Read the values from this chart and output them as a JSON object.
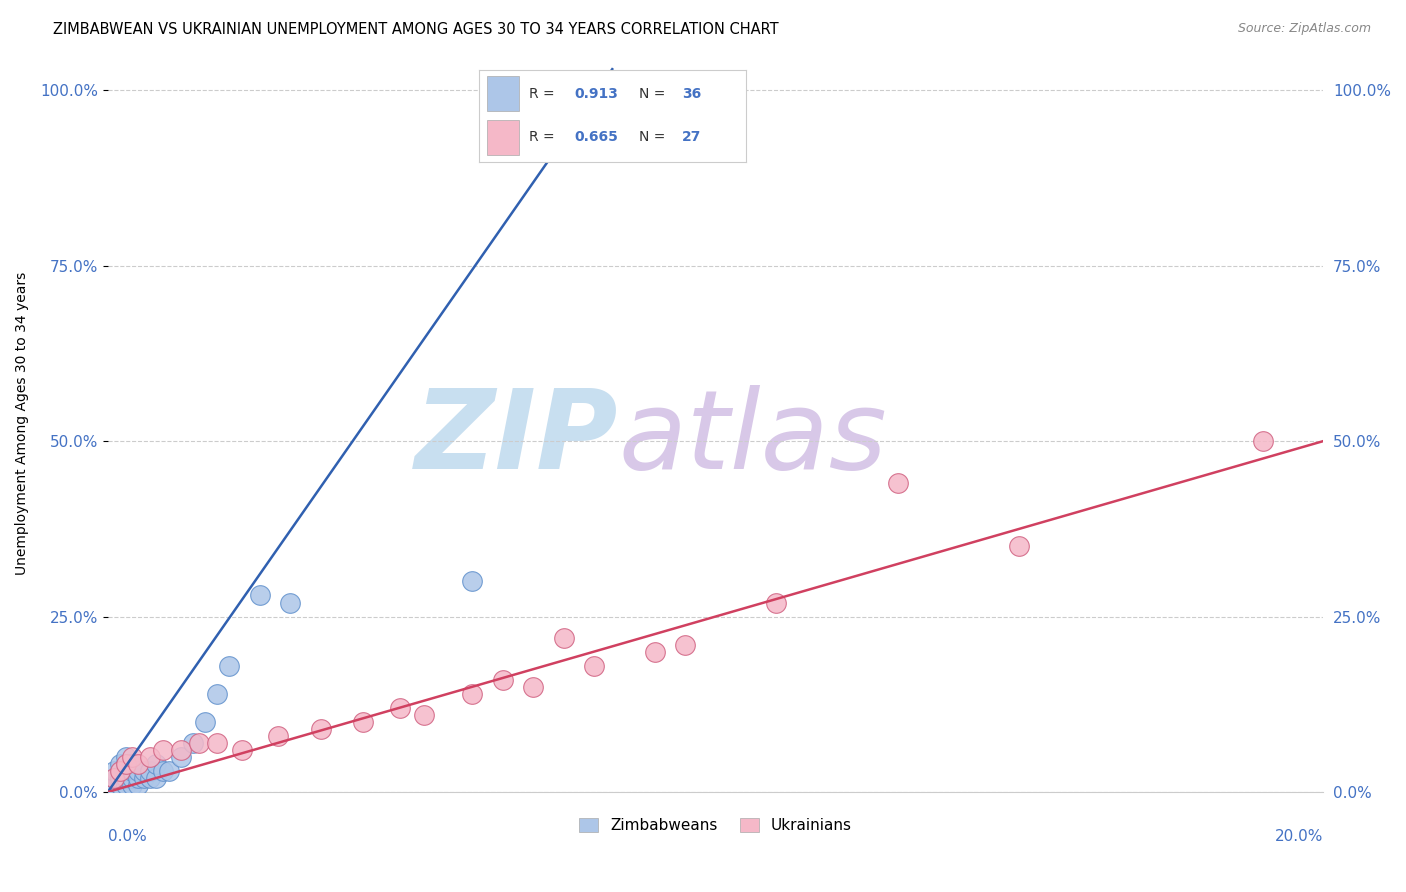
{
  "title": "ZIMBABWEAN VS UKRAINIAN UNEMPLOYMENT AMONG AGES 30 TO 34 YEARS CORRELATION CHART",
  "source": "Source: ZipAtlas.com",
  "ylabel": "Unemployment Among Ages 30 to 34 years",
  "x_label_bottom_left": "0.0%",
  "x_label_bottom_right": "20.0%",
  "xlim": [
    0,
    0.2
  ],
  "ylim": [
    0,
    1.05
  ],
  "y_ticks": [
    0.0,
    0.25,
    0.5,
    0.75,
    1.0
  ],
  "y_tick_labels": [
    "0.0%",
    "25.0%",
    "50.0%",
    "75.0%",
    "100.0%"
  ],
  "legend_entries": [
    {
      "label": "Zimbabweans",
      "color": "#adc6e8",
      "edge_color": "#6090cc",
      "R": 0.913,
      "N": 36
    },
    {
      "label": "Ukrainians",
      "color": "#f5b8c8",
      "edge_color": "#d06080",
      "R": 0.665,
      "N": 27
    }
  ],
  "zim_scatter_x": [
    0.001,
    0.001,
    0.001,
    0.002,
    0.002,
    0.002,
    0.002,
    0.003,
    0.003,
    0.003,
    0.003,
    0.003,
    0.004,
    0.004,
    0.004,
    0.004,
    0.005,
    0.005,
    0.005,
    0.006,
    0.006,
    0.007,
    0.007,
    0.008,
    0.008,
    0.009,
    0.01,
    0.012,
    0.014,
    0.016,
    0.018,
    0.02,
    0.025,
    0.03,
    0.06,
    0.08
  ],
  "zim_scatter_y": [
    0.01,
    0.02,
    0.03,
    0.01,
    0.02,
    0.03,
    0.04,
    0.01,
    0.02,
    0.03,
    0.04,
    0.05,
    0.01,
    0.02,
    0.03,
    0.04,
    0.01,
    0.02,
    0.03,
    0.02,
    0.03,
    0.02,
    0.03,
    0.02,
    0.04,
    0.03,
    0.03,
    0.05,
    0.07,
    0.1,
    0.14,
    0.18,
    0.28,
    0.27,
    0.3,
    1.0
  ],
  "ukr_scatter_x": [
    0.001,
    0.002,
    0.003,
    0.004,
    0.005,
    0.007,
    0.009,
    0.012,
    0.015,
    0.018,
    0.022,
    0.028,
    0.035,
    0.042,
    0.048,
    0.052,
    0.06,
    0.065,
    0.07,
    0.075,
    0.08,
    0.09,
    0.095,
    0.11,
    0.13,
    0.15,
    0.19
  ],
  "ukr_scatter_y": [
    0.02,
    0.03,
    0.04,
    0.05,
    0.04,
    0.05,
    0.06,
    0.06,
    0.07,
    0.07,
    0.06,
    0.08,
    0.09,
    0.1,
    0.12,
    0.11,
    0.14,
    0.16,
    0.15,
    0.22,
    0.18,
    0.2,
    0.21,
    0.27,
    0.44,
    0.35,
    0.5
  ],
  "zim_line_x": [
    0.0,
    0.083
  ],
  "zim_line_y": [
    0.0,
    1.03
  ],
  "ukr_line_x": [
    0.0,
    0.2
  ],
  "ukr_line_y": [
    0.0,
    0.5
  ],
  "scatter_size": 200,
  "zim_line_color": "#3060b0",
  "ukr_line_color": "#d04060",
  "watermark_zip_color": "#c8dff0",
  "watermark_atlas_color": "#d8c8e8",
  "background_color": "#ffffff",
  "grid_color": "#cccccc",
  "grid_style": "--"
}
